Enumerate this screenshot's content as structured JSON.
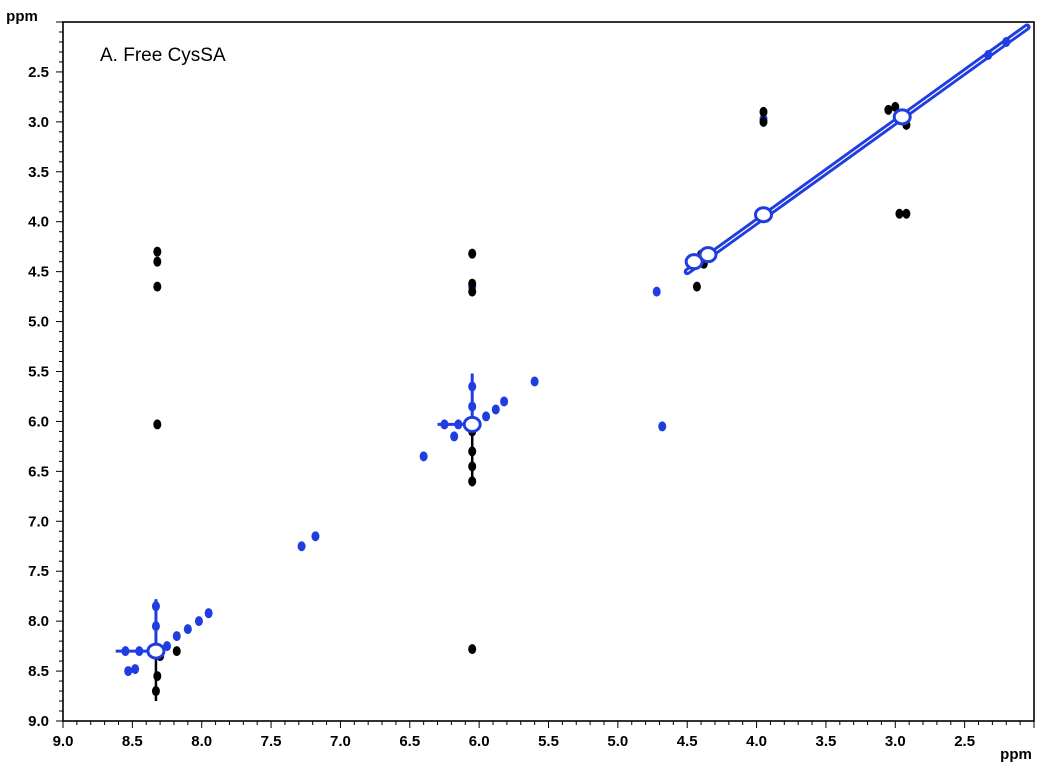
{
  "chart_data": {
    "type": "scatter",
    "title": "A. Free CysSA",
    "x_unit_label": "ppm",
    "y_unit_label": "ppm",
    "xlim": [
      9.0,
      2.0
    ],
    "ylim": [
      9.0,
      2.0
    ],
    "x_ticks": [
      "9.0",
      "8.5",
      "8.0",
      "7.5",
      "7.0",
      "6.5",
      "6.0",
      "5.5",
      "5.0",
      "4.5",
      "4.0",
      "3.5",
      "3.0",
      "2.5"
    ],
    "y_ticks": [
      "2.5",
      "3.0",
      "3.5",
      "4.0",
      "4.5",
      "5.0",
      "5.5",
      "6.0",
      "6.5",
      "7.0",
      "7.5",
      "8.0",
      "8.5",
      "9.0"
    ],
    "x_reversed": true,
    "y_reversed": true,
    "grid": false,
    "diagonal": {
      "from": 4.5,
      "to": 2.05,
      "color": "#1f3de0"
    },
    "series": [
      {
        "color": "#1f3de0",
        "points": [
          {
            "x": 8.32,
            "y": 8.3
          },
          {
            "x": 8.45,
            "y": 8.3
          },
          {
            "x": 8.55,
            "y": 8.3
          },
          {
            "x": 8.25,
            "y": 8.25
          },
          {
            "x": 8.18,
            "y": 8.15
          },
          {
            "x": 8.1,
            "y": 8.08
          },
          {
            "x": 8.02,
            "y": 8.0
          },
          {
            "x": 7.95,
            "y": 7.92
          },
          {
            "x": 8.33,
            "y": 8.05
          },
          {
            "x": 8.33,
            "y": 7.85
          },
          {
            "x": 8.48,
            "y": 8.48
          },
          {
            "x": 8.53,
            "y": 8.5
          },
          {
            "x": 7.28,
            "y": 7.25
          },
          {
            "x": 7.18,
            "y": 7.15
          },
          {
            "x": 6.05,
            "y": 6.03
          },
          {
            "x": 6.15,
            "y": 6.03
          },
          {
            "x": 6.25,
            "y": 6.03
          },
          {
            "x": 5.95,
            "y": 5.95
          },
          {
            "x": 5.88,
            "y": 5.88
          },
          {
            "x": 5.82,
            "y": 5.8
          },
          {
            "x": 6.05,
            "y": 5.85
          },
          {
            "x": 6.05,
            "y": 5.65
          },
          {
            "x": 6.05,
            "y": 4.65
          },
          {
            "x": 6.4,
            "y": 6.35
          },
          {
            "x": 6.18,
            "y": 6.15
          },
          {
            "x": 5.6,
            "y": 5.6
          },
          {
            "x": 4.72,
            "y": 4.7
          },
          {
            "x": 4.68,
            "y": 6.05
          },
          {
            "x": 3.95,
            "y": 3.93
          },
          {
            "x": 2.95,
            "y": 2.95
          },
          {
            "x": 3.95,
            "y": 2.97
          },
          {
            "x": 2.33,
            "y": 2.33
          },
          {
            "x": 2.2,
            "y": 2.2
          }
        ]
      },
      {
        "color": "#000000",
        "points": [
          {
            "x": 8.32,
            "y": 4.3
          },
          {
            "x": 8.32,
            "y": 4.4
          },
          {
            "x": 8.32,
            "y": 4.65
          },
          {
            "x": 8.32,
            "y": 6.03
          },
          {
            "x": 8.3,
            "y": 8.35
          },
          {
            "x": 8.32,
            "y": 8.55
          },
          {
            "x": 8.33,
            "y": 8.7
          },
          {
            "x": 8.18,
            "y": 8.3
          },
          {
            "x": 6.05,
            "y": 4.32
          },
          {
            "x": 6.05,
            "y": 4.62
          },
          {
            "x": 6.05,
            "y": 4.7
          },
          {
            "x": 6.05,
            "y": 6.1
          },
          {
            "x": 6.05,
            "y": 6.3
          },
          {
            "x": 6.05,
            "y": 6.45
          },
          {
            "x": 6.05,
            "y": 6.6
          },
          {
            "x": 6.05,
            "y": 8.28
          },
          {
            "x": 4.43,
            "y": 4.65
          },
          {
            "x": 4.4,
            "y": 4.33
          },
          {
            "x": 4.38,
            "y": 4.42
          },
          {
            "x": 3.95,
            "y": 2.9
          },
          {
            "x": 3.95,
            "y": 3.0
          },
          {
            "x": 2.97,
            "y": 3.92
          },
          {
            "x": 2.92,
            "y": 3.92
          },
          {
            "x": 3.05,
            "y": 2.88
          },
          {
            "x": 2.92,
            "y": 3.03
          },
          {
            "x": 3.0,
            "y": 2.85
          }
        ]
      }
    ]
  }
}
